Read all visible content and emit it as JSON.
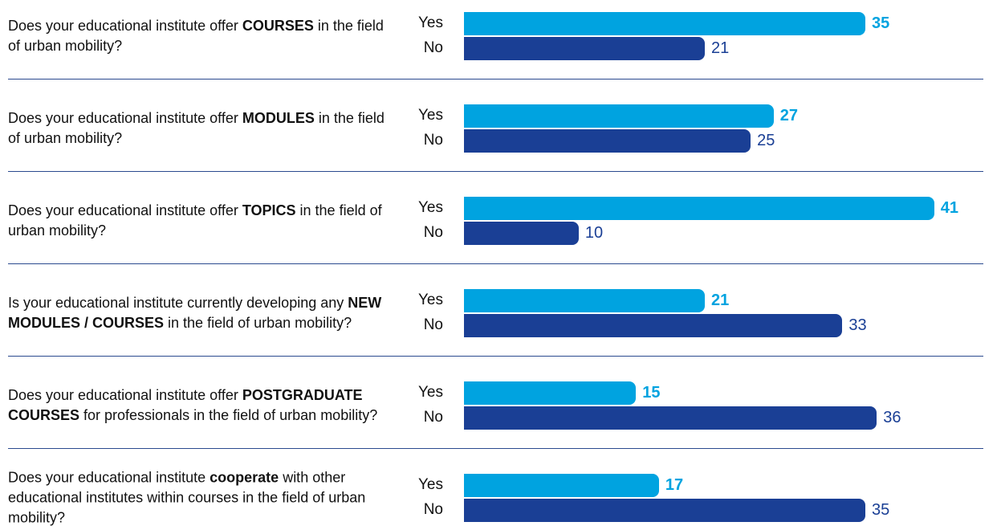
{
  "chart_data": {
    "type": "bar",
    "orientation": "horizontal",
    "questions": [
      {
        "parts": [
          "Does your educational institute offer ",
          "COURSES",
          " in the field of urban mobility?"
        ],
        "bold": [
          1
        ]
      },
      {
        "parts": [
          "Does your educational institute offer ",
          "MODULES",
          " in the field of urban mobility?"
        ],
        "bold": [
          1
        ]
      },
      {
        "parts": [
          "Does your educational institute offer ",
          "TOPICS",
          " in the field of urban mobility?"
        ],
        "bold": [
          1
        ]
      },
      {
        "parts": [
          "Is your educational institute currently developing any ",
          "NEW MODULES / COURSES",
          " in the field of urban mobility?"
        ],
        "bold": [
          1
        ]
      },
      {
        "parts": [
          "Does your educational institute offer ",
          "POSTGRADUATE COURSES",
          " for professionals in the field of urban mobility?"
        ],
        "bold": [
          1
        ]
      },
      {
        "parts": [
          "Does your educational institute ",
          "cooperate",
          " with other educational institutes within courses in the field of urban mobility?"
        ],
        "bold": [
          1
        ]
      }
    ],
    "series": [
      {
        "name": "Yes",
        "color": "#00a3e0",
        "values": [
          35,
          27,
          41,
          21,
          15,
          17
        ]
      },
      {
        "name": "No",
        "color": "#1a3f95",
        "values": [
          21,
          25,
          10,
          33,
          36,
          35
        ]
      }
    ],
    "xlim": [
      0,
      42
    ]
  }
}
